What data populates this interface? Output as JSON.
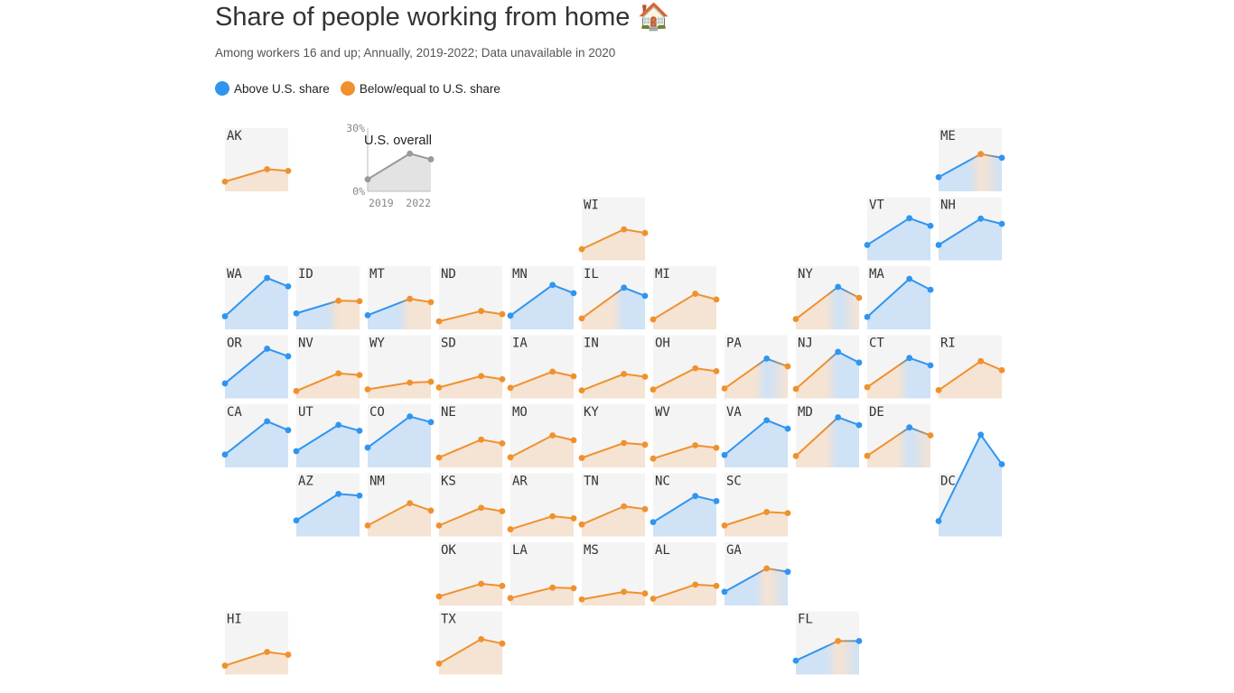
{
  "header": {
    "title": "Share of people working from home 🏠",
    "subtitle": "Among workers 16 and up; Annually, 2019-2022; Data unavailable in 2020"
  },
  "legend": {
    "above_label": "Above U.S. share",
    "below_label": "Below/equal to U.S. share"
  },
  "colors": {
    "above": "#2f95f0",
    "below": "#f0912d",
    "above_fill": "#cfe2f6",
    "below_fill": "#f5e3d3",
    "overall": "#999999",
    "overall_fill": "#e3e3e3",
    "tile_bg": "#f4f4f4"
  },
  "chart_data": {
    "type": "line",
    "title": "Share of people working from home",
    "x": [
      2019,
      2021,
      2022
    ],
    "ylim": [
      0,
      30
    ],
    "y_ticks": [
      "0%",
      "30%"
    ],
    "x_ticks": [
      "2019",
      "2022"
    ],
    "overall": {
      "label": "U.S. overall",
      "values": [
        5.7,
        17.9,
        15.2
      ]
    },
    "states": [
      {
        "abbr": "AK",
        "col": 0,
        "row": 0,
        "values": [
          4.6,
          10.5,
          9.7
        ]
      },
      {
        "abbr": "ME",
        "col": 10,
        "row": 0,
        "values": [
          6.7,
          17.7,
          15.9
        ]
      },
      {
        "abbr": "WI",
        "col": 5,
        "row": 1,
        "values": [
          5.3,
          14.7,
          13.0
        ]
      },
      {
        "abbr": "VT",
        "col": 9,
        "row": 1,
        "values": [
          7.3,
          20.0,
          16.4
        ]
      },
      {
        "abbr": "NH",
        "col": 10,
        "row": 1,
        "values": [
          7.3,
          19.8,
          17.3
        ]
      },
      {
        "abbr": "WA",
        "col": 0,
        "row": 2,
        "values": [
          6.2,
          24.4,
          20.4
        ]
      },
      {
        "abbr": "ID",
        "col": 1,
        "row": 2,
        "values": [
          7.6,
          13.6,
          13.4
        ]
      },
      {
        "abbr": "MT",
        "col": 2,
        "row": 2,
        "values": [
          6.7,
          14.5,
          12.9
        ]
      },
      {
        "abbr": "ND",
        "col": 3,
        "row": 2,
        "values": [
          3.8,
          8.7,
          7.2
        ]
      },
      {
        "abbr": "MN",
        "col": 4,
        "row": 2,
        "values": [
          6.5,
          21.1,
          17.2
        ]
      },
      {
        "abbr": "IL",
        "col": 5,
        "row": 2,
        "values": [
          5.2,
          19.8,
          15.9
        ]
      },
      {
        "abbr": "MI",
        "col": 6,
        "row": 2,
        "values": [
          4.7,
          16.9,
          14.2
        ]
      },
      {
        "abbr": "NY",
        "col": 8,
        "row": 2,
        "values": [
          4.9,
          20.2,
          15.0
        ]
      },
      {
        "abbr": "MA",
        "col": 9,
        "row": 2,
        "values": [
          5.9,
          24.0,
          18.8
        ]
      },
      {
        "abbr": "OR",
        "col": 0,
        "row": 3,
        "values": [
          7.1,
          23.6,
          20.0
        ]
      },
      {
        "abbr": "NV",
        "col": 1,
        "row": 3,
        "values": [
          3.5,
          11.9,
          11.1
        ]
      },
      {
        "abbr": "WY",
        "col": 2,
        "row": 3,
        "values": [
          4.3,
          7.5,
          7.9
        ]
      },
      {
        "abbr": "SD",
        "col": 3,
        "row": 3,
        "values": [
          5.2,
          10.6,
          9.1
        ]
      },
      {
        "abbr": "IA",
        "col": 4,
        "row": 3,
        "values": [
          5.0,
          12.7,
          10.5
        ]
      },
      {
        "abbr": "IN",
        "col": 5,
        "row": 3,
        "values": [
          3.8,
          11.6,
          10.3
        ]
      },
      {
        "abbr": "OH",
        "col": 6,
        "row": 3,
        "values": [
          4.2,
          14.3,
          12.9
        ]
      },
      {
        "abbr": "PA",
        "col": 7,
        "row": 3,
        "values": [
          4.7,
          18.9,
          15.2
        ]
      },
      {
        "abbr": "NJ",
        "col": 8,
        "row": 3,
        "values": [
          4.5,
          22.1,
          17.0
        ]
      },
      {
        "abbr": "CT",
        "col": 9,
        "row": 3,
        "values": [
          5.3,
          19.2,
          15.7
        ]
      },
      {
        "abbr": "RI",
        "col": 10,
        "row": 3,
        "values": [
          3.9,
          17.7,
          13.4
        ]
      },
      {
        "abbr": "CA",
        "col": 0,
        "row": 4,
        "values": [
          6.1,
          21.9,
          17.7
        ]
      },
      {
        "abbr": "UT",
        "col": 1,
        "row": 4,
        "values": [
          7.7,
          20.2,
          17.4
        ]
      },
      {
        "abbr": "CO",
        "col": 2,
        "row": 4,
        "values": [
          9.4,
          24.2,
          21.5
        ]
      },
      {
        "abbr": "NE",
        "col": 3,
        "row": 4,
        "values": [
          4.7,
          13.2,
          11.4
        ]
      },
      {
        "abbr": "MO",
        "col": 4,
        "row": 4,
        "values": [
          4.8,
          15.2,
          12.9
        ]
      },
      {
        "abbr": "KY",
        "col": 5,
        "row": 4,
        "values": [
          4.5,
          11.6,
          10.8
        ]
      },
      {
        "abbr": "WV",
        "col": 6,
        "row": 4,
        "values": [
          4.2,
          10.5,
          9.3
        ]
      },
      {
        "abbr": "VA",
        "col": 7,
        "row": 4,
        "values": [
          5.9,
          22.4,
          18.4
        ]
      },
      {
        "abbr": "MD",
        "col": 8,
        "row": 4,
        "values": [
          5.4,
          23.8,
          20.1
        ]
      },
      {
        "abbr": "DE",
        "col": 9,
        "row": 4,
        "values": [
          5.5,
          19.0,
          15.2
        ]
      },
      {
        "abbr": "AZ",
        "col": 1,
        "row": 5,
        "values": [
          7.6,
          20.2,
          19.4
        ]
      },
      {
        "abbr": "NM",
        "col": 2,
        "row": 5,
        "values": [
          5.2,
          15.8,
          12.3
        ]
      },
      {
        "abbr": "KS",
        "col": 3,
        "row": 5,
        "values": [
          5.2,
          13.6,
          12.0
        ]
      },
      {
        "abbr": "AR",
        "col": 4,
        "row": 5,
        "values": [
          3.4,
          9.6,
          8.6
        ]
      },
      {
        "abbr": "TN",
        "col": 5,
        "row": 5,
        "values": [
          5.7,
          14.3,
          13.0
        ]
      },
      {
        "abbr": "NC",
        "col": 6,
        "row": 5,
        "values": [
          6.8,
          19.2,
          16.8
        ]
      },
      {
        "abbr": "SC",
        "col": 7,
        "row": 5,
        "values": [
          5.2,
          11.6,
          11.1
        ]
      },
      {
        "abbr": "DC",
        "col": 10,
        "row": 5,
        "values": [
          7.3,
          48.3,
          34.3
        ]
      },
      {
        "abbr": "OK",
        "col": 3,
        "row": 6,
        "values": [
          4.3,
          10.3,
          9.3
        ]
      },
      {
        "abbr": "LA",
        "col": 4,
        "row": 6,
        "values": [
          3.5,
          8.5,
          8.2
        ]
      },
      {
        "abbr": "MS",
        "col": 5,
        "row": 6,
        "values": [
          2.9,
          6.5,
          5.7
        ]
      },
      {
        "abbr": "AL",
        "col": 6,
        "row": 6,
        "values": [
          3.2,
          9.9,
          9.3
        ]
      },
      {
        "abbr": "GA",
        "col": 7,
        "row": 6,
        "values": [
          6.5,
          17.6,
          16.0
        ]
      },
      {
        "abbr": "HI",
        "col": 0,
        "row": 7,
        "values": [
          4.2,
          10.7,
          9.4
        ]
      },
      {
        "abbr": "TX",
        "col": 3,
        "row": 7,
        "values": [
          5.2,
          16.8,
          14.7
        ]
      },
      {
        "abbr": "FL",
        "col": 8,
        "row": 7,
        "values": [
          6.6,
          15.9,
          15.9
        ]
      }
    ]
  }
}
